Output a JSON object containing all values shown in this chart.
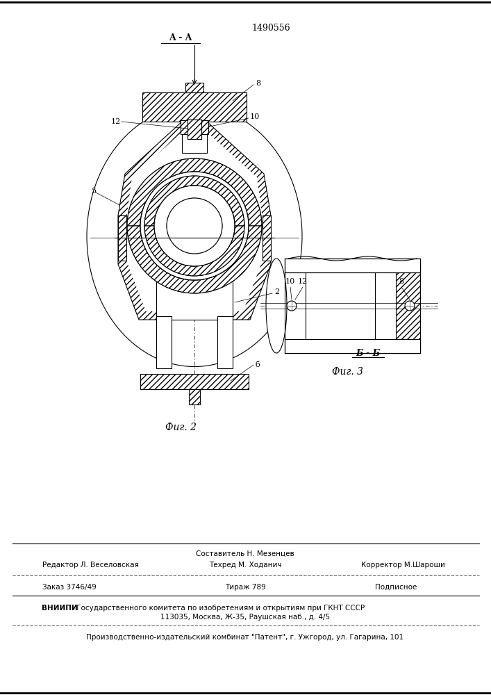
{
  "patent_number": "1490556",
  "fig2_label": "Фиг. 2",
  "fig3_label": "Фиг. 3",
  "section_aa": "A - A",
  "section_bb": "Б - Б",
  "label_8": "8",
  "label_10": "10",
  "label_12": "12",
  "label_5": "5",
  "label_2": "2",
  "label_6": "б",
  "footer_line1_left": "Редактор Л. Веселовская",
  "footer_line1_center": "Составитель Н. Мезенцев",
  "footer_line1_right": "Корректор М.Шароши",
  "footer_line2_center": "Техред М. Ходанич",
  "footer_order_left": "Заказ 3746/49",
  "footer_order_center": "Тираж 789",
  "footer_order_right": "Подписное",
  "footer_vniipи": "ВНИИПИ Государственного комитета по изобретениям и открытиям при ГКНТ СССР",
  "footer_address": "113035, Москва, Ж-35, Раушская наб., д. 4/5",
  "footer_patent": "Производственно-издательский комбинат \"Патент\", г. Ужгород, ул. Гагарина, 101",
  "bg_color": "#ffffff",
  "line_color": "#000000"
}
